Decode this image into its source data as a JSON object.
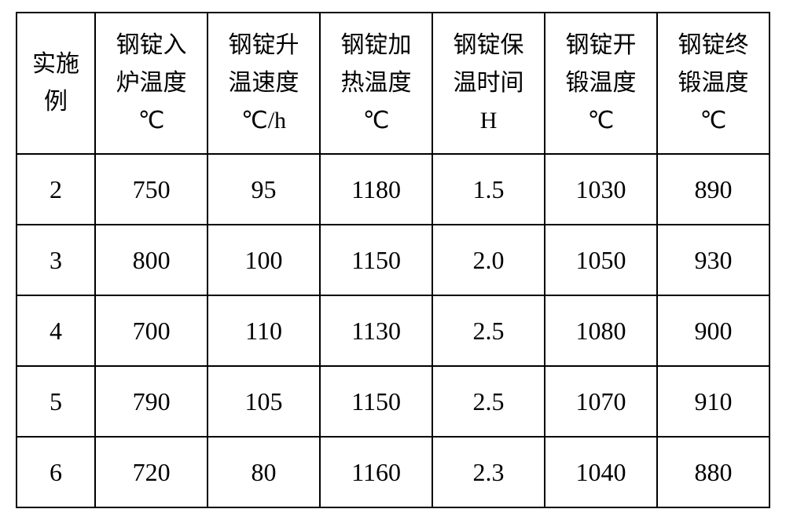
{
  "table": {
    "type": "table",
    "background_color": "#ffffff",
    "border_color": "#000000",
    "border_width": 2,
    "text_color": "#000000",
    "header_fontsize": 30,
    "body_fontsize": 32,
    "columns": [
      {
        "lines": [
          "实施",
          "例"
        ],
        "width_pct": 12
      },
      {
        "lines": [
          "钢锭入",
          "炉温度",
          "℃"
        ],
        "width_pct": 14.67
      },
      {
        "lines": [
          "钢锭升",
          "温速度",
          "℃/h"
        ],
        "width_pct": 14.67
      },
      {
        "lines": [
          "钢锭加",
          "热温度",
          "℃"
        ],
        "width_pct": 14.67
      },
      {
        "lines": [
          "钢锭保",
          "温时间",
          "H"
        ],
        "width_pct": 14.67
      },
      {
        "lines": [
          "钢锭开",
          "锻温度",
          "℃"
        ],
        "width_pct": 14.67
      },
      {
        "lines": [
          "钢锭终",
          "锻温度",
          "℃"
        ],
        "width_pct": 14.67
      }
    ],
    "rows": [
      [
        "2",
        "750",
        "95",
        "1180",
        "1.5",
        "1030",
        "890"
      ],
      [
        "3",
        "800",
        "100",
        "1150",
        "2.0",
        "1050",
        "930"
      ],
      [
        "4",
        "700",
        "110",
        "1130",
        "2.5",
        "1080",
        "900"
      ],
      [
        "5",
        "790",
        "105",
        "1150",
        "2.5",
        "1070",
        "910"
      ],
      [
        "6",
        "720",
        "80",
        "1160",
        "2.3",
        "1040",
        "880"
      ]
    ]
  }
}
